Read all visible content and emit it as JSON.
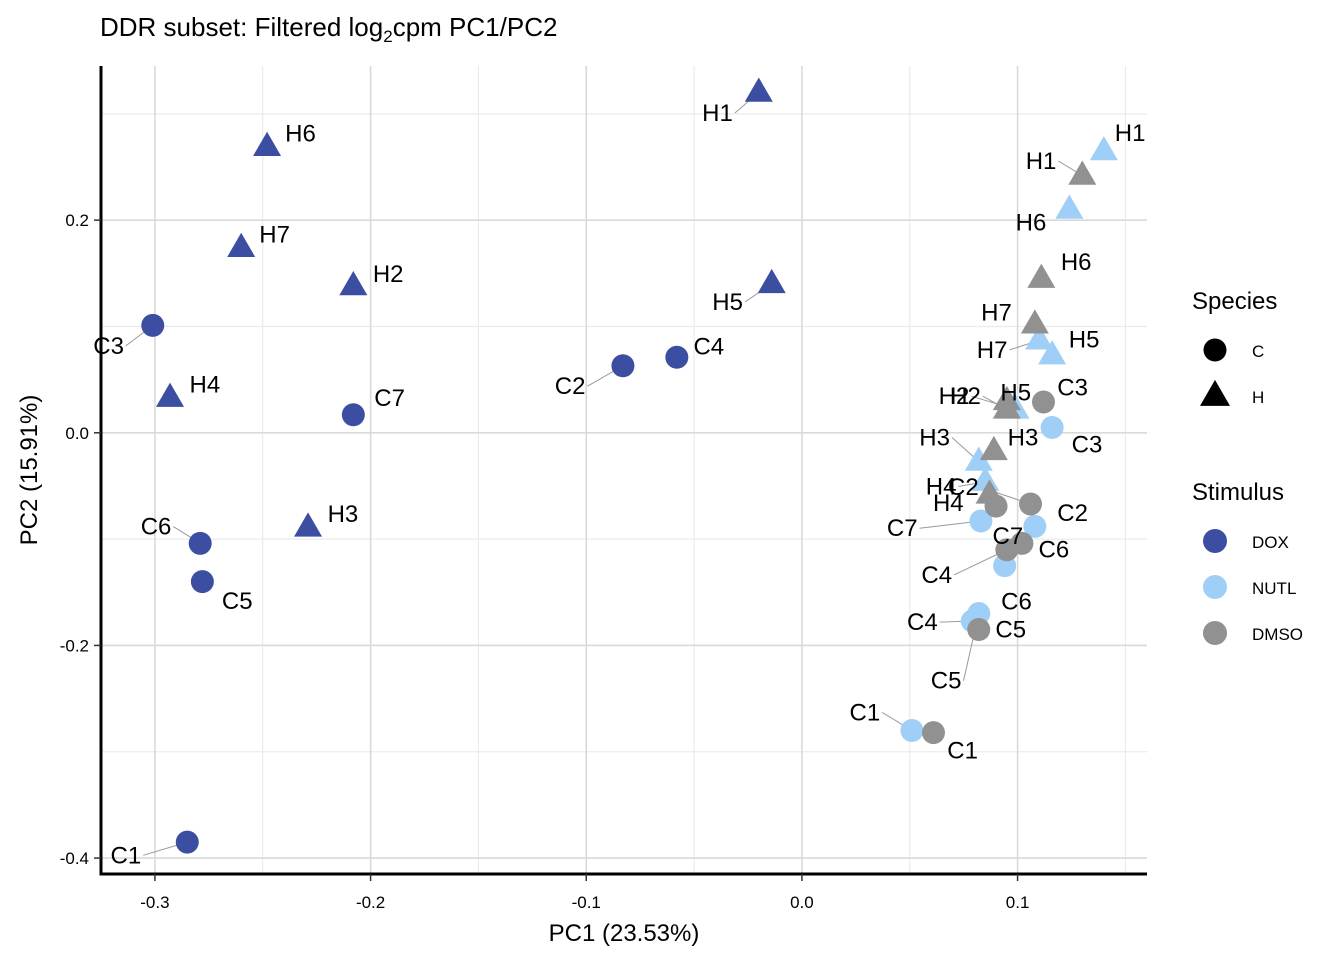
{
  "chart_data": {
    "type": "scatter",
    "title_parts": [
      "DDR subset: Filtered log",
      "2",
      "cpm PC1/PC2"
    ],
    "xlabel": "PC1 (23.53%)",
    "ylabel": "PC2 (15.91%)",
    "xlim": [
      -0.325,
      0.16
    ],
    "ylim": [
      -0.415,
      0.345
    ],
    "xticks": [
      -0.3,
      -0.2,
      -0.1,
      0.0,
      0.1
    ],
    "xtick_labels": [
      "-0.3",
      "-0.2",
      "-0.1",
      "0.0",
      "0.1"
    ],
    "yticks": [
      -0.4,
      -0.2,
      0.0,
      0.2
    ],
    "ytick_labels": [
      "-0.4",
      "-0.2",
      "0.0",
      "0.2"
    ],
    "grid": true,
    "colors": {
      "DOX": "#3c4ea1",
      "NUTL": "#9fcff6",
      "DMSO": "#919191"
    },
    "legend": {
      "species_title": "Species",
      "species": [
        {
          "label": "C",
          "shape": "circle"
        },
        {
          "label": "H",
          "shape": "triangle"
        }
      ],
      "stimulus_title": "Stimulus",
      "stimulus": [
        {
          "label": "DOX"
        },
        {
          "label": "NUTL"
        },
        {
          "label": "DMSO"
        }
      ]
    },
    "points": [
      {
        "label": "C1",
        "stimulus": "DOX",
        "species": "C",
        "x": -0.285,
        "y": -0.385,
        "lp": "w",
        "ldx": 1.6,
        "ldy": 0.55
      },
      {
        "label": "C2",
        "stimulus": "DOX",
        "species": "C",
        "x": -0.083,
        "y": 0.063,
        "lp": "w",
        "ldx": 1.3,
        "ldy": 0.85
      },
      {
        "label": "C3",
        "stimulus": "DOX",
        "species": "C",
        "x": -0.301,
        "y": 0.101,
        "lp": "w",
        "ldx": 1.0,
        "ldy": 0.85
      },
      {
        "label": "C4",
        "stimulus": "DOX",
        "species": "C",
        "x": -0.058,
        "y": 0.071,
        "lp": "e",
        "ldx": 0.3,
        "ldy": -0.45
      },
      {
        "label": "C5",
        "stimulus": "DOX",
        "species": "C",
        "x": -0.278,
        "y": -0.14,
        "lp": "e",
        "ldx": 0.4,
        "ldy": 0.8
      },
      {
        "label": "C6",
        "stimulus": "DOX",
        "species": "C",
        "x": -0.279,
        "y": -0.104,
        "lp": "w",
        "ldx": 1.0,
        "ldy": -0.7
      },
      {
        "label": "C7",
        "stimulus": "DOX",
        "species": "C",
        "x": -0.208,
        "y": 0.017,
        "lp": "e",
        "ldx": 0.45,
        "ldy": -0.7
      },
      {
        "label": "H1",
        "stimulus": "DOX",
        "species": "H",
        "x": -0.02,
        "y": 0.32,
        "lp": "w",
        "ldx": 0.9,
        "ldy": 0.85
      },
      {
        "label": "H2",
        "stimulus": "DOX",
        "species": "H",
        "x": -0.208,
        "y": 0.138,
        "lp": "e",
        "ldx": 0.4,
        "ldy": -0.5
      },
      {
        "label": "H3",
        "stimulus": "DOX",
        "species": "H",
        "x": -0.229,
        "y": -0.089,
        "lp": "e",
        "ldx": 0.4,
        "ldy": -0.55
      },
      {
        "label": "H4",
        "stimulus": "DOX",
        "species": "H",
        "x": -0.293,
        "y": 0.033,
        "lp": "e",
        "ldx": 0.4,
        "ldy": -0.55
      },
      {
        "label": "H5",
        "stimulus": "DOX",
        "species": "H",
        "x": -0.014,
        "y": 0.14,
        "lp": "w",
        "ldx": 1.0,
        "ldy": 0.75
      },
      {
        "label": "H6",
        "stimulus": "DOX",
        "species": "H",
        "x": -0.248,
        "y": 0.269,
        "lp": "e",
        "ldx": 0.35,
        "ldy": -0.55
      },
      {
        "label": "H7",
        "stimulus": "DOX",
        "species": "H",
        "x": -0.26,
        "y": 0.174,
        "lp": "e",
        "ldx": 0.35,
        "ldy": -0.55
      },
      {
        "label": "C1",
        "stimulus": "NUTL",
        "species": "C",
        "x": 0.051,
        "y": -0.28,
        "lp": "w",
        "ldx": 1.1,
        "ldy": -0.75
      },
      {
        "label": "C2",
        "stimulus": "NUTL",
        "species": "C",
        "x": 0.108,
        "y": -0.088,
        "lp": "e",
        "ldx": 0.5,
        "ldy": -0.55
      },
      {
        "label": "C3",
        "stimulus": "NUTL",
        "species": "C",
        "x": 0.116,
        "y": 0.005,
        "lp": "e",
        "ldx": 0.4,
        "ldy": 0.7
      },
      {
        "label": "C4",
        "stimulus": "NUTL",
        "species": "C",
        "x": 0.079,
        "y": -0.177,
        "lp": "w",
        "ldx": 1.2,
        "ldy": 0.05
      },
      {
        "label": "C5",
        "stimulus": "NUTL",
        "species": "C",
        "x": 0.082,
        "y": -0.17,
        "lp": "w",
        "ldx": 0.6,
        "ldy": 2.8
      },
      {
        "label": "C6",
        "stimulus": "NUTL",
        "species": "C",
        "x": 0.094,
        "y": -0.125,
        "lp": "e",
        "ldx": -0.4,
        "ldy": 1.5
      },
      {
        "label": "C7",
        "stimulus": "NUTL",
        "species": "C",
        "x": 0.083,
        "y": -0.083,
        "lp": "w",
        "ldx": 2.2,
        "ldy": 0.3
      },
      {
        "label": "H1",
        "stimulus": "NUTL",
        "species": "H",
        "x": 0.14,
        "y": 0.265,
        "lp": "e",
        "ldx": 0.1,
        "ldy": -0.75
      },
      {
        "label": "H2",
        "stimulus": "NUTL",
        "species": "H",
        "x": 0.099,
        "y": 0.022,
        "lp": "w",
        "ldx": 1.6,
        "ldy": -0.55
      },
      {
        "label": "H3",
        "stimulus": "NUTL",
        "species": "H",
        "x": 0.082,
        "y": -0.027,
        "lp": "w",
        "ldx": 1.0,
        "ldy": -1.0
      },
      {
        "label": "H4",
        "stimulus": "NUTL",
        "species": "H",
        "x": 0.085,
        "y": -0.046,
        "lp": "w",
        "ldx": 1.0,
        "ldy": 0.2
      },
      {
        "label": "H5",
        "stimulus": "NUTL",
        "species": "H",
        "x": 0.116,
        "y": 0.073,
        "lp": "e",
        "ldx": 0.3,
        "ldy": -0.65
      },
      {
        "label": "H6",
        "stimulus": "NUTL",
        "species": "H",
        "x": 0.124,
        "y": 0.21,
        "lp": "w",
        "ldx": 0.8,
        "ldy": 0.55
      },
      {
        "label": "H7",
        "stimulus": "NUTL",
        "species": "H",
        "x": 0.11,
        "y": 0.087,
        "lp": "w",
        "ldx": 1.1,
        "ldy": 0.4
      },
      {
        "label": "C1",
        "stimulus": "DMSO",
        "species": "C",
        "x": 0.061,
        "y": -0.282,
        "lp": "e",
        "ldx": 0.2,
        "ldy": 0.75
      },
      {
        "label": "C2",
        "stimulus": "DMSO",
        "species": "C",
        "x": 0.106,
        "y": -0.067,
        "lp": "w",
        "ldx": 1.8,
        "ldy": -0.7
      },
      {
        "label": "C3",
        "stimulus": "DMSO",
        "species": "C",
        "x": 0.112,
        "y": 0.029,
        "lp": "e",
        "ldx": 0.2,
        "ldy": -0.6
      },
      {
        "label": "C4",
        "stimulus": "DMSO",
        "species": "C",
        "x": 0.095,
        "y": -0.11,
        "lp": "w",
        "ldx": 1.9,
        "ldy": 1.05
      },
      {
        "label": "C5",
        "stimulus": "DMSO",
        "species": "C",
        "x": 0.082,
        "y": -0.185,
        "lp": "e",
        "ldx": 0.3,
        "ldy": 0.0
      },
      {
        "label": "C6",
        "stimulus": "DMSO",
        "species": "C",
        "x": 0.102,
        "y": -0.104,
        "lp": "e",
        "ldx": 0.3,
        "ldy": 0.25
      },
      {
        "label": "C7",
        "stimulus": "DMSO",
        "species": "C",
        "x": 0.09,
        "y": -0.069,
        "lp": "e",
        "ldx": -0.4,
        "ldy": 1.25
      },
      {
        "label": "H1",
        "stimulus": "DMSO",
        "species": "H",
        "x": 0.13,
        "y": 0.242,
        "lp": "w",
        "ldx": 0.9,
        "ldy": -0.6
      },
      {
        "label": "H2",
        "stimulus": "DMSO",
        "species": "H",
        "x": 0.095,
        "y": 0.022,
        "lp": "w",
        "ldx": 0.9,
        "ldy": -0.55
      },
      {
        "label": "H3",
        "stimulus": "DMSO",
        "species": "H",
        "x": 0.089,
        "y": -0.017,
        "lp": "e",
        "ldx": 0.2,
        "ldy": -0.55
      },
      {
        "label": "H4",
        "stimulus": "DMSO",
        "species": "H",
        "x": 0.087,
        "y": -0.058,
        "lp": "w",
        "ldx": 0.9,
        "ldy": 0.35
      },
      {
        "label": "H5",
        "stimulus": "DMSO",
        "species": "H",
        "x": 0.095,
        "y": 0.03,
        "lp": "e",
        "ldx": -0.5,
        "ldy": -0.35
      },
      {
        "label": "H6",
        "stimulus": "DMSO",
        "species": "H",
        "x": 0.111,
        "y": 0.145,
        "lp": "e",
        "ldx": 0.4,
        "ldy": -0.7
      },
      {
        "label": "H7",
        "stimulus": "DMSO",
        "species": "H",
        "x": 0.108,
        "y": 0.102,
        "lp": "w",
        "ldx": 0.8,
        "ldy": -0.5
      }
    ]
  }
}
